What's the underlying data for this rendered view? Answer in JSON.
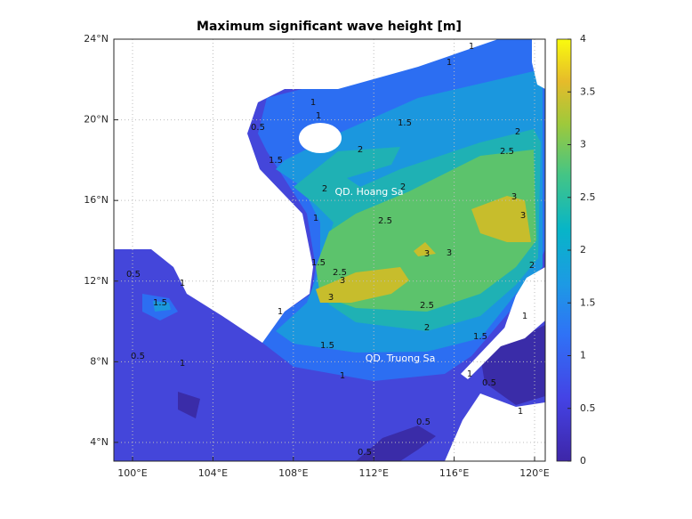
{
  "title": "Maximum significant wave height [m]",
  "axes": {
    "xlim": [
      99.07,
      120.53
    ],
    "ylim": [
      3.07,
      24
    ],
    "xticks": [
      {
        "value": 100,
        "label": "100°E"
      },
      {
        "value": 104,
        "label": "104°E"
      },
      {
        "value": 108,
        "label": "108°E"
      },
      {
        "value": 112,
        "label": "112°E"
      },
      {
        "value": 116,
        "label": "116°E"
      },
      {
        "value": 120,
        "label": "120°E"
      }
    ],
    "yticks": [
      {
        "value": 4,
        "label": "4°N"
      },
      {
        "value": 8,
        "label": "8°N"
      },
      {
        "value": 12,
        "label": "12°N"
      },
      {
        "value": 16,
        "label": "16°N"
      },
      {
        "value": 20,
        "label": "20°N"
      },
      {
        "value": 24,
        "label": "24°N"
      }
    ],
    "grid": true
  },
  "colorbar": {
    "lim": [
      0,
      4
    ],
    "ticks": [
      0,
      0.5,
      1,
      1.5,
      2,
      2.5,
      3,
      3.5,
      4
    ]
  },
  "places": [
    {
      "label": "QD. Hoang Sa"
    },
    {
      "label": "QD. Truong Sa"
    }
  ],
  "contour_labels": [
    1,
    1,
    0.5,
    1.5,
    1,
    1,
    1.5,
    2,
    2,
    2.5,
    2,
    2,
    2.5,
    3,
    3,
    3,
    3,
    2.5,
    3,
    3,
    2.5,
    2,
    1.5,
    1,
    1,
    1.5,
    1,
    0.5,
    0.5,
    0.5,
    2,
    1,
    0.5,
    1.5,
    1,
    0.5,
    1,
    1,
    1.5,
    1
  ]
}
